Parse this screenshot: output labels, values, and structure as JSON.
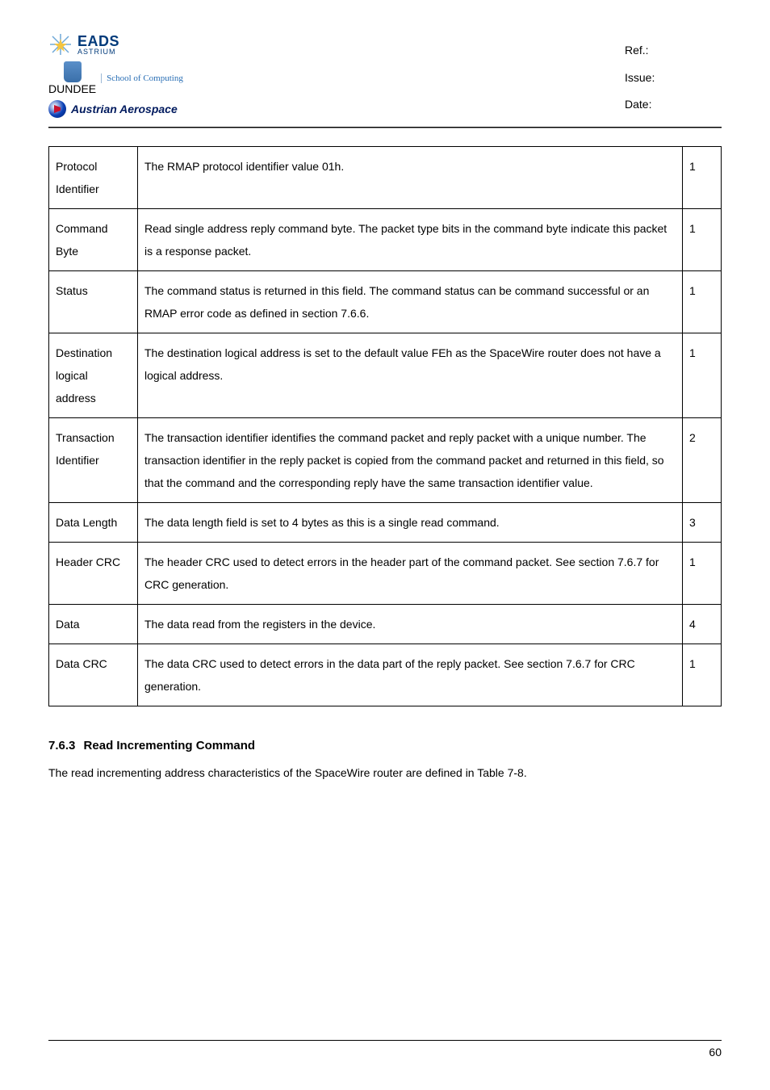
{
  "header": {
    "eads_top": "EADS",
    "eads_bot": "ASTRIUM",
    "school": "School of Computing",
    "dundee": "DUNDEE",
    "austrian": "Austrian Aerospace",
    "ref_label": "Ref.:",
    "issue_label": "Issue:",
    "date_label": "Date:"
  },
  "table": {
    "rows": [
      {
        "c0": "Protocol Identifier",
        "c1": "The RMAP protocol identifier value 01h.",
        "c2": "1"
      },
      {
        "c0": "Command Byte",
        "c1": "Read single address reply command byte. The packet type bits in the command byte indicate this packet is a response packet.",
        "c2": "1"
      },
      {
        "c0": "Status",
        "c1": "The command status is returned in this field. The command status can be command successful or an RMAP error code as defined in section 7.6.6.",
        "c2": "1"
      },
      {
        "c0": "Destination logical address",
        "c1": "The destination logical address is set to the default value FEh as the SpaceWire router does not have a logical address.",
        "c2": "1"
      },
      {
        "c0": "Transaction Identifier",
        "c1": "The transaction identifier identifies the command packet and reply packet with a unique number. The transaction identifier in the reply packet is copied from the command packet and returned in this field, so that the command and the corresponding reply have the same transaction identifier value.",
        "c2": "2"
      },
      {
        "c0": "Data Length",
        "c1": "The data length field is set to 4 bytes as this is a single read command.",
        "c2": "3"
      },
      {
        "c0": "Header CRC",
        "c1": "The header CRC used to detect errors in the header part of the command packet. See section 7.6.7 for CRC generation.",
        "c2": "1"
      },
      {
        "c0": "Data",
        "c1": "The data read from the registers in the device.",
        "c2": "4"
      },
      {
        "c0": "Data CRC",
        "c1": "The data CRC used to detect errors in the data part of the reply packet. See section 7.6.7 for CRC generation.",
        "c2": "1"
      }
    ]
  },
  "section": {
    "num": "7.6.3",
    "title": "Read Incrementing Command",
    "body": "The read incrementing address characteristics of the SpaceWire router are defined in Table 7-8."
  },
  "footer": {
    "page": "60"
  },
  "colors": {
    "text": "#000000",
    "bg": "#ffffff",
    "border": "#000000",
    "eads_blue": "#003a7a",
    "austrian_blue": "#001a5e"
  }
}
